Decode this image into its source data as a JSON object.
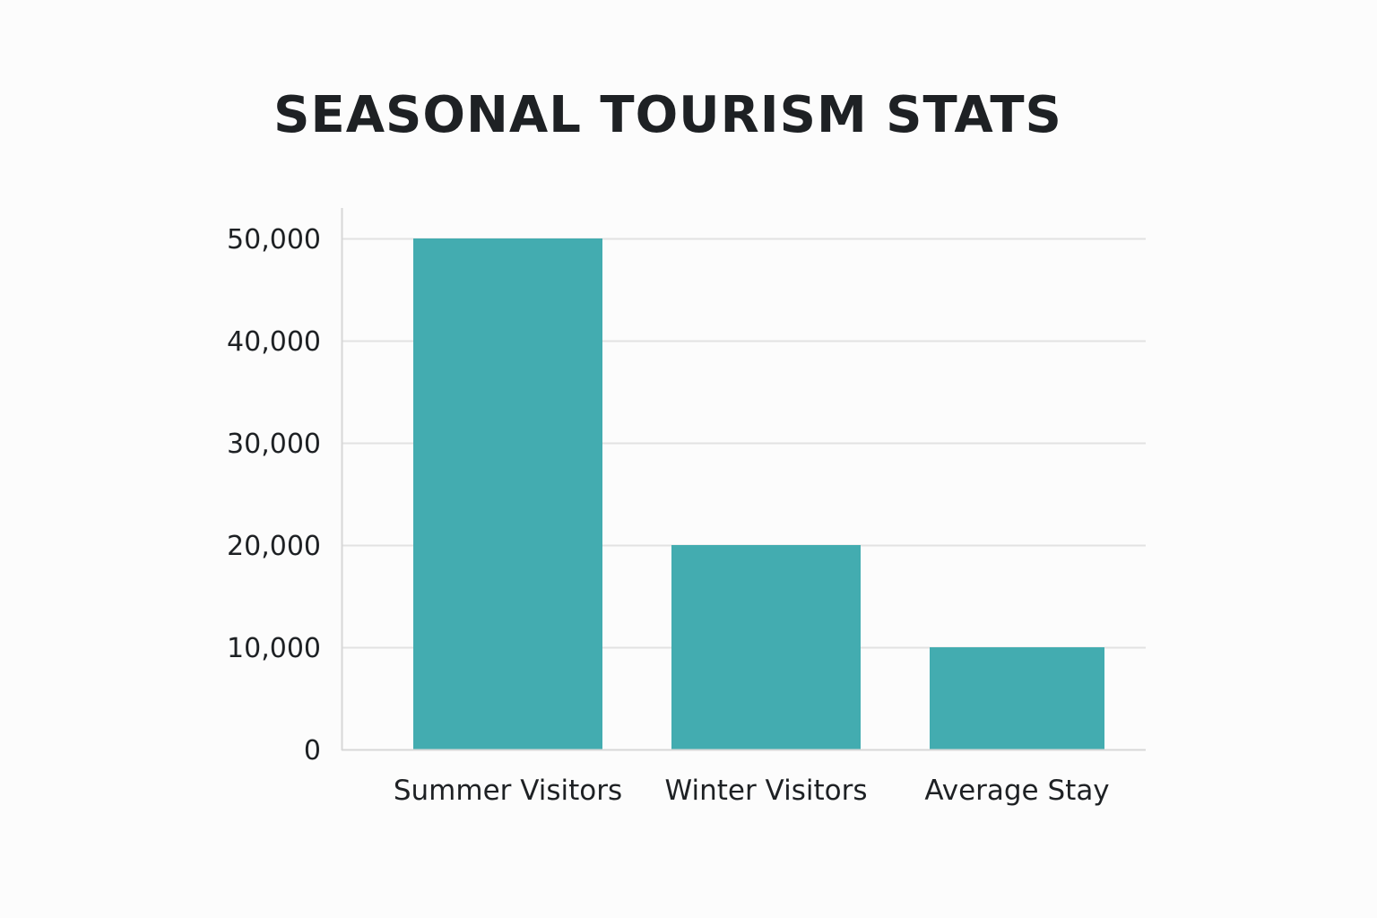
{
  "chart_data": {
    "type": "bar",
    "title": "SEASONAL TOURISM STATS",
    "categories": [
      "Summer Visitors",
      "Winter Visitors",
      "Average Stay"
    ],
    "values": [
      50000,
      20000,
      10000
    ],
    "yticks": [
      "0",
      "10,000",
      "20,000",
      "30,000",
      "40,000",
      "50,000"
    ],
    "ytick_values": [
      0,
      10000,
      20000,
      30000,
      40000,
      50000
    ],
    "ylim": [
      0,
      50000
    ],
    "xlabel": "",
    "ylabel": "",
    "grid": true,
    "legend": "none",
    "colors": {
      "bar": "#43acb0",
      "grid": "#e2e2e2",
      "axis": "#d7d7d7",
      "text": "#1e2124"
    }
  }
}
